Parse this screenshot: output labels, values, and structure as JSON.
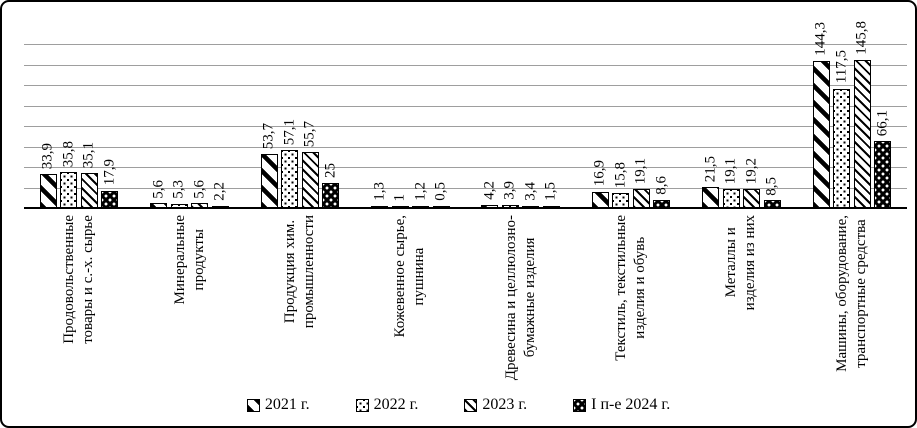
{
  "chart_data": {
    "type": "bar",
    "title": "",
    "xlabel": "",
    "ylabel": "",
    "ylim": [
      0,
      160
    ],
    "grid_step": 20,
    "grid": true,
    "legend_position": "bottom",
    "categories": [
      "Продовольственные\nтовары и с.-х. сырье",
      "Минеральные\nпродукты",
      "Продукция хим.\nпромышленности",
      "Кожевенное сырье,\nпушнина",
      "Древесина и целлюлозно-\nбумажные изделия",
      "Текстиль, текстильные\nизделия и обувь",
      "Металлы и\nизделия из них",
      "Машины, оборудование,\nтранспортные средства"
    ],
    "series": [
      {
        "name": "2021 г.",
        "pattern": "diagonal-wide",
        "values": [
          33.9,
          5.6,
          53.7,
          1.3,
          4.2,
          16.9,
          21.5,
          144.3
        ],
        "labels": [
          "33,9",
          "5,6",
          "53,7",
          "1,3",
          "4,2",
          "16,9",
          "21,5",
          "144,3"
        ]
      },
      {
        "name": "2022 г.",
        "pattern": "dots-on-white",
        "values": [
          35.8,
          5.3,
          57.1,
          1,
          3.9,
          15.8,
          19.1,
          117.5
        ],
        "labels": [
          "35,8",
          "5,3",
          "57,1",
          "1",
          "3,9",
          "15,8",
          "19,1",
          "117,5"
        ]
      },
      {
        "name": "2023 г.",
        "pattern": "diagonal-thin",
        "values": [
          35.1,
          5.6,
          55.7,
          1.2,
          3.4,
          19.1,
          19.2,
          145.8
        ],
        "labels": [
          "35,1",
          "5,6",
          "55,7",
          "1,2",
          "3,4",
          "19,1",
          "19,2",
          "145,8"
        ]
      },
      {
        "name": "I п-е 2024 г.",
        "pattern": "dots-on-black",
        "values": [
          17.9,
          2.2,
          25,
          0.5,
          1.5,
          8.6,
          8.5,
          66.1
        ],
        "labels": [
          "17,9",
          "2,2",
          "25",
          "0,5",
          "1,5",
          "8,6",
          "8,5",
          "66,1"
        ]
      }
    ],
    "colors": {
      "foreground": "#000000",
      "background": "#ffffff",
      "gridline": "#9e9e9e",
      "border": "#000000"
    }
  }
}
